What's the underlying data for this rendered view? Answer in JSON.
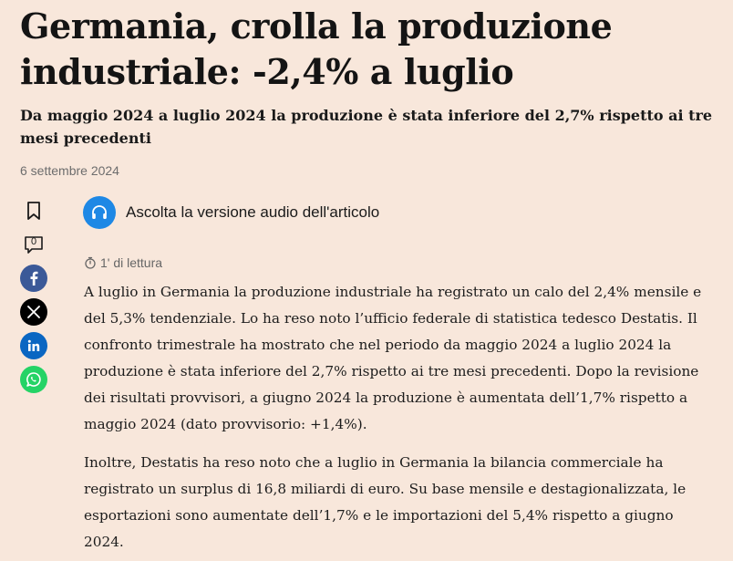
{
  "article": {
    "headline": "Germania, crolla la produzione industriale: -2,4% a luglio",
    "subtitle": "Da maggio 2024 a luglio 2024 la produzione è stata inferiore del 2,7% rispetto ai tre mesi precedenti",
    "date": "6 settembre 2024",
    "reading_time": "1' di lettura",
    "paragraphs": [
      "A luglio in Germania la produzione industriale ha registrato un calo del 2,4% mensile e del 5,3% tendenziale. Lo ha reso noto l’ufficio federale di statistica tedesco Destatis. Il confronto trimestrale ha mostrato che nel periodo da maggio 2024 a luglio 2024 la produzione è stata inferiore del 2,7% rispetto ai tre mesi precedenti. Dopo la revisione dei risultati provvisori, a giugno 2024 la produzione è aumentata dell’1,7% rispetto a maggio 2024 (dato provvisorio: +1,4%).",
      "Inoltre, Destatis ha reso noto che a luglio in Germania la bilancia commerciale ha registrato un surplus di 16,8 miliardi di euro. Su base mensile e destagionalizzata, le esportazioni sono aumentate dell’1,7% e le importazioni del 5,4% rispetto a giugno 2024."
    ]
  },
  "audio": {
    "label": "Ascolta la versione audio dell'articolo",
    "icon": "headphones-icon"
  },
  "share_bar": {
    "comment_count": "0",
    "icons": [
      "bookmark-icon",
      "comment-icon",
      "facebook-icon",
      "x-icon",
      "linkedin-icon",
      "whatsapp-icon"
    ]
  },
  "colors": {
    "background": "#f8e7db",
    "audio_button": "#1e88e5",
    "facebook": "#3b5998",
    "x": "#000000",
    "linkedin": "#0a66c2",
    "whatsapp": "#25d366"
  }
}
